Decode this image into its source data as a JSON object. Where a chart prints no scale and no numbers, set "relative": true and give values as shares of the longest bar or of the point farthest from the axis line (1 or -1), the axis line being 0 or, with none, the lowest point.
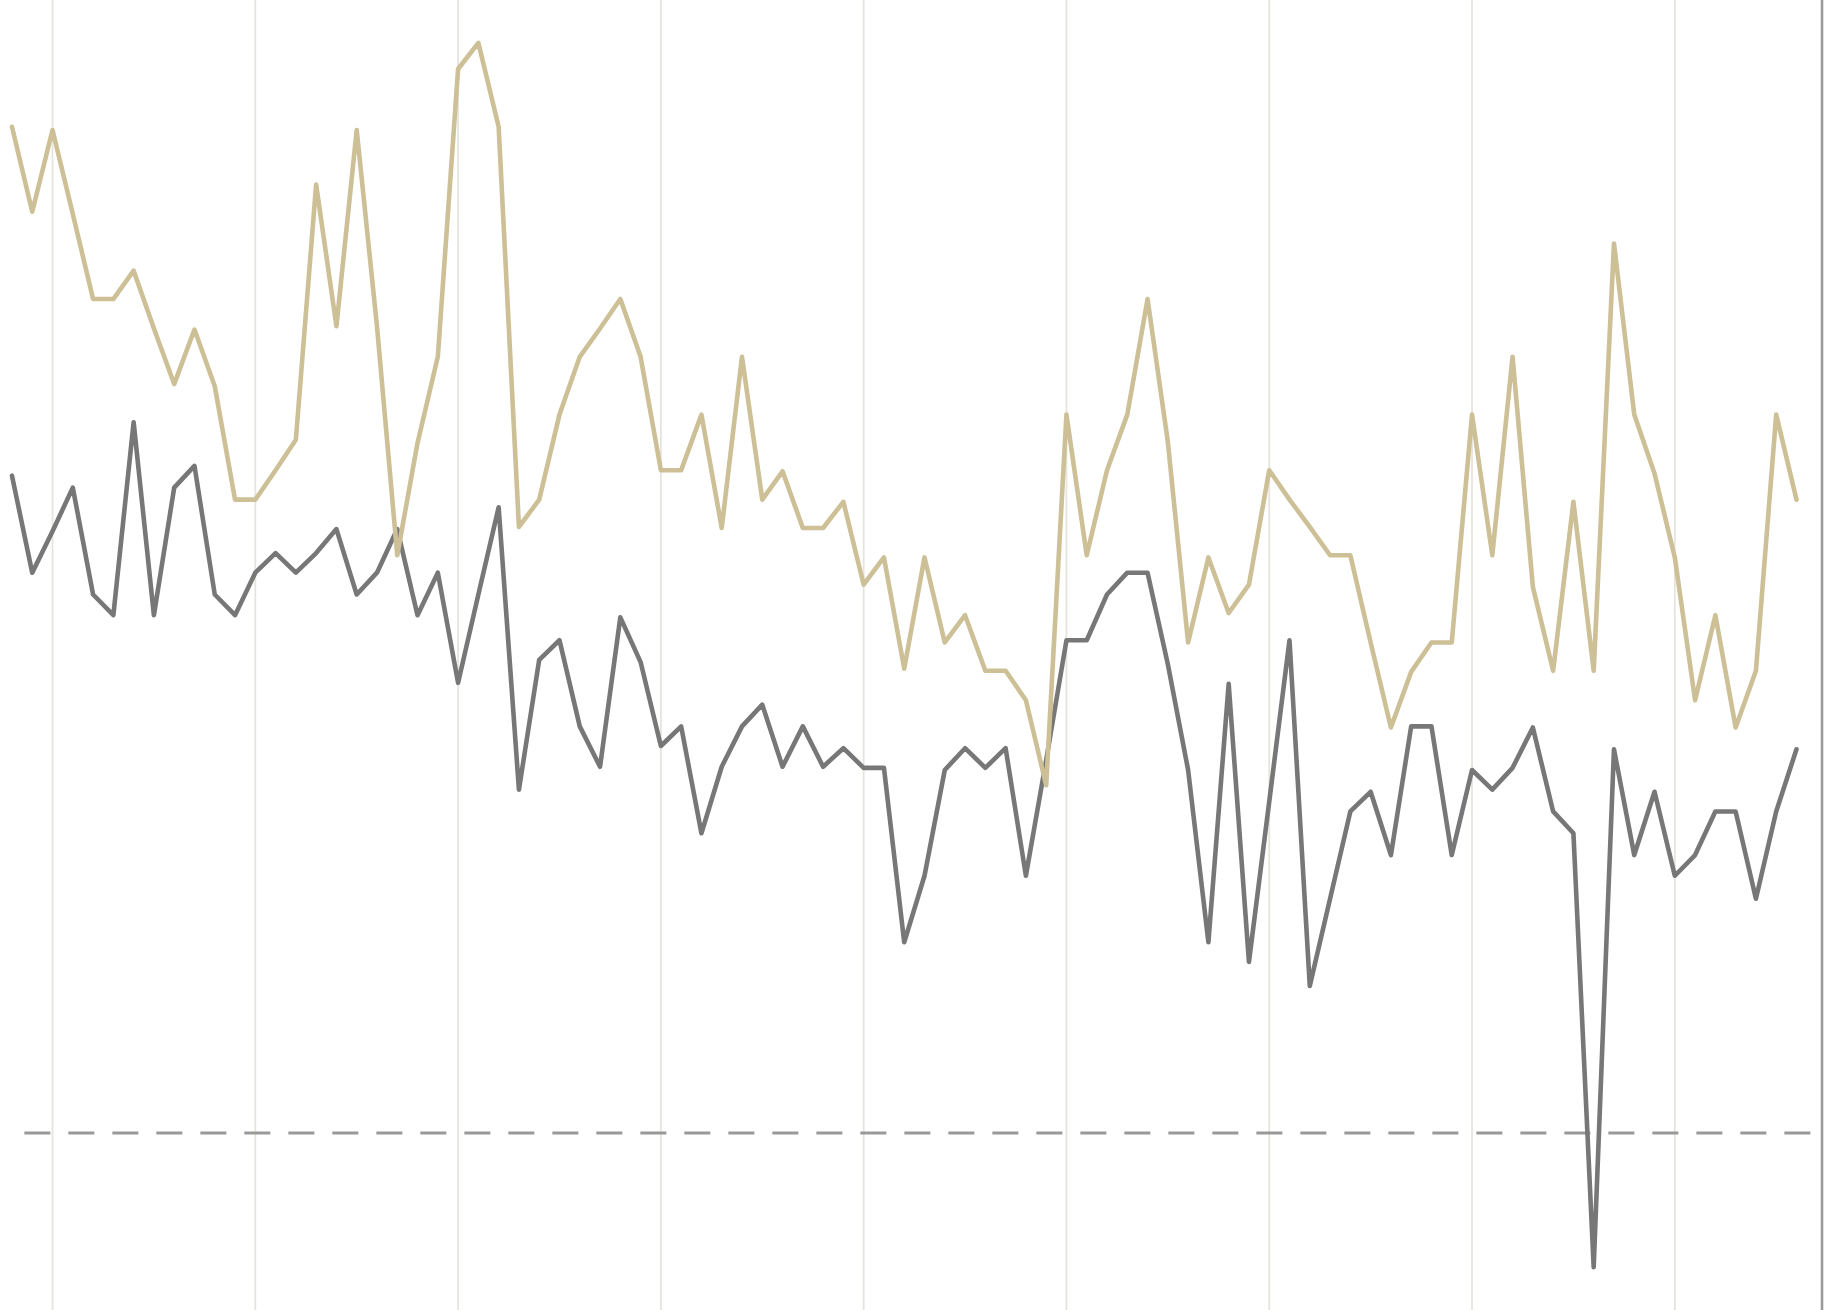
{
  "chart_data": {
    "type": "line",
    "relative": true,
    "grid": "x",
    "categories": [
      null,
      null,
      null,
      null,
      null,
      null,
      null,
      null,
      null,
      null,
      null,
      null,
      null,
      null,
      null,
      null,
      null,
      null,
      null,
      null,
      null,
      null,
      null,
      null,
      null,
      null,
      null,
      null,
      null,
      null,
      null,
      null,
      null,
      null,
      null,
      null,
      null,
      null,
      null,
      null,
      null,
      null,
      null,
      null,
      null,
      null,
      null,
      null,
      null,
      null,
      null,
      null,
      null,
      null,
      null,
      null,
      null,
      null,
      null,
      null,
      null,
      null,
      null,
      null,
      null,
      null,
      null,
      null,
      null,
      null,
      null,
      null,
      null,
      null,
      null,
      null,
      null,
      null,
      null,
      null,
      null,
      null,
      null,
      null,
      null,
      null,
      null,
      null,
      null
    ],
    "series": [
      {
        "color": "#777777",
        "values": [
          0.603,
          0.514,
          0.552,
          0.592,
          0.494,
          0.475,
          0.652,
          0.475,
          0.592,
          0.612,
          0.494,
          0.475,
          0.514,
          0.532,
          0.514,
          0.532,
          0.554,
          0.494,
          0.514,
          0.554,
          0.475,
          0.514,
          0.413,
          0.494,
          0.574,
          0.315,
          0.434,
          0.452,
          0.373,
          0.336,
          0.473,
          0.432,
          0.355,
          0.373,
          0.275,
          0.336,
          0.373,
          0.393,
          0.336,
          0.373,
          0.336,
          0.353,
          0.335,
          0.335,
          0.175,
          0.236,
          0.333,
          0.353,
          0.335,
          0.353,
          0.236,
          0.342,
          0.452,
          0.452,
          0.494,
          0.514,
          0.514,
          0.43,
          0.333,
          0.175,
          0.412,
          0.157,
          0.304,
          0.452,
          0.135,
          0.215,
          0.295,
          0.313,
          0.255,
          0.373,
          0.373,
          0.255,
          0.333,
          0.315,
          0.335,
          0.372,
          0.295,
          0.275,
          -0.123,
          0.352,
          0.255,
          0.313,
          0.236,
          0.255,
          0.295,
          0.295,
          0.215,
          0.295,
          0.352
        ]
      },
      {
        "color": "#cdc096",
        "values": [
          0.923,
          0.845,
          0.92,
          0.843,
          0.765,
          0.765,
          0.791,
          0.738,
          0.687,
          0.737,
          0.685,
          0.581,
          0.581,
          0.608,
          0.636,
          0.87,
          0.74,
          0.92,
          0.74,
          0.53,
          0.633,
          0.712,
          0.976,
          1.0,
          0.923,
          0.556,
          0.581,
          0.659,
          0.712,
          0.738,
          0.765,
          0.712,
          0.608,
          0.608,
          0.659,
          0.555,
          0.712,
          0.581,
          0.607,
          0.555,
          0.555,
          0.579,
          0.503,
          0.528,
          0.426,
          0.528,
          0.45,
          0.475,
          0.424,
          0.424,
          0.397,
          0.319,
          0.659,
          0.53,
          0.608,
          0.659,
          0.765,
          0.634,
          0.45,
          0.528,
          0.477,
          0.503,
          0.608,
          0.581,
          0.556,
          0.53,
          0.53,
          0.45,
          0.372,
          0.423,
          0.45,
          0.45,
          0.659,
          0.53,
          0.712,
          0.501,
          0.424,
          0.579,
          0.424,
          0.816,
          0.659,
          0.605,
          0.528,
          0.397,
          0.475,
          0.372,
          0.424,
          0.659,
          0.581
        ]
      }
    ],
    "ref_lines": [
      {
        "axis": "y",
        "value": 0,
        "color": "#999999",
        "line_style": "dashed"
      }
    ]
  }
}
